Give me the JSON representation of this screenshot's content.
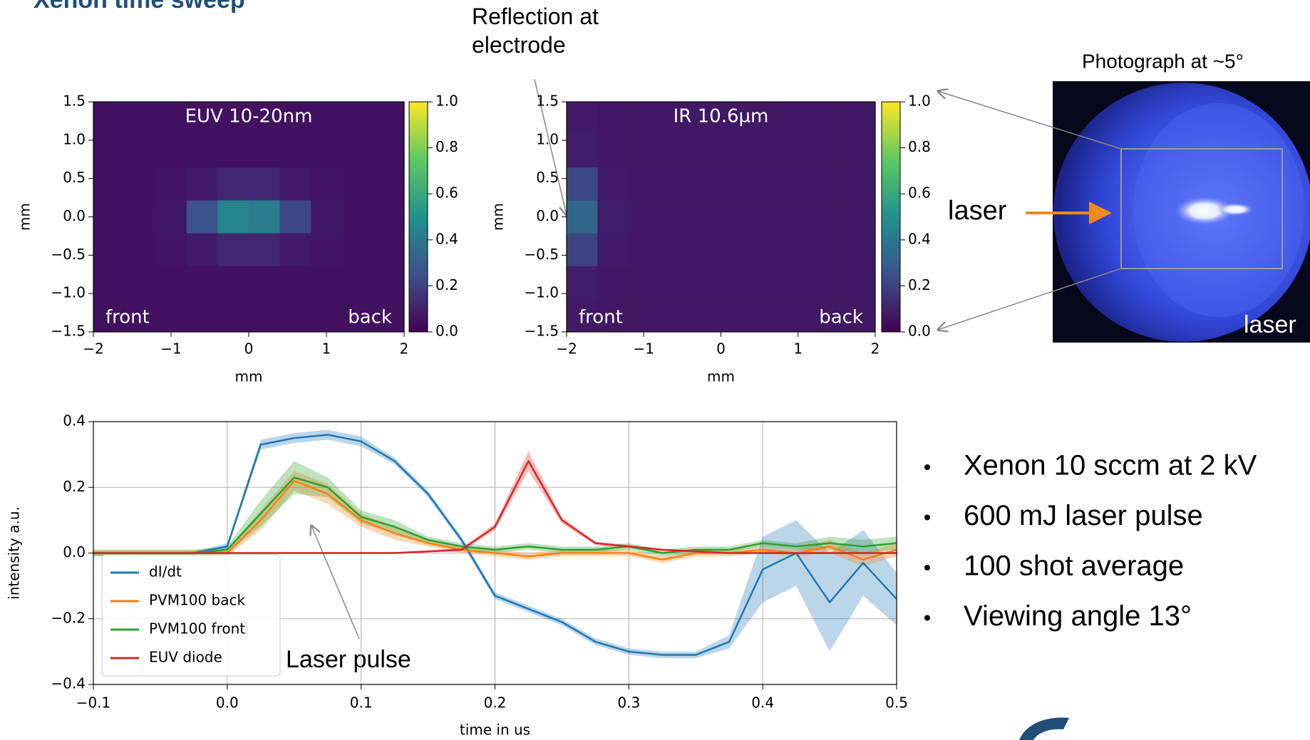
{
  "slide": {
    "title": "Xenon time sweep",
    "bullets": [
      "Xenon 10 sccm at 2 kV",
      "600 mJ laser pulse",
      "100 shot average",
      "Viewing angle 13°"
    ],
    "reflection_note": "Reflection at electrode",
    "photo_caption": "Photograph at ~5°",
    "laser_label": "laser",
    "photo_laser_label": "laser",
    "pulse_note": "Laser pulse"
  },
  "chart_data": [
    {
      "type": "heatmap",
      "title": "EUV 10-20nm",
      "xlabel": "mm",
      "ylabel": "mm",
      "left_label": "front",
      "right_label": "back",
      "xlim": [
        -2,
        2
      ],
      "ylim": [
        -1.5,
        1.5
      ],
      "xticks": [
        {
          "value": -2,
          "label": "−2"
        },
        {
          "value": -1,
          "label": "−1"
        },
        0,
        1,
        2
      ],
      "yticks": [
        1.5,
        {
          "value": 1.0,
          "label": "1.0"
        },
        0.5,
        {
          "value": 0.0,
          "label": "0.0"
        },
        {
          "value": -0.5,
          "label": "−0.5"
        },
        {
          "value": -1.0,
          "label": "−1.0"
        },
        {
          "value": -1.5,
          "label": "−1.5"
        }
      ],
      "clim": [
        0,
        1
      ],
      "cticks": [
        {
          "value": 1.0,
          "label": "1.0"
        },
        0.8,
        0.6,
        0.4,
        0.2,
        {
          "value": 0.0,
          "label": "0.0"
        }
      ],
      "z": [
        [
          0.05,
          0.05,
          0.05,
          0.05,
          0.05,
          0.05,
          0.05,
          0.05,
          0.05,
          0.05
        ],
        [
          0.05,
          0.05,
          0.05,
          0.05,
          0.05,
          0.05,
          0.05,
          0.05,
          0.05,
          0.05
        ],
        [
          0.05,
          0.05,
          0.06,
          0.08,
          0.12,
          0.12,
          0.08,
          0.06,
          0.05,
          0.05
        ],
        [
          0.05,
          0.05,
          0.07,
          0.25,
          0.45,
          0.42,
          0.22,
          0.07,
          0.05,
          0.05
        ],
        [
          0.05,
          0.05,
          0.06,
          0.08,
          0.12,
          0.12,
          0.08,
          0.06,
          0.05,
          0.05
        ],
        [
          0.05,
          0.05,
          0.05,
          0.05,
          0.05,
          0.05,
          0.05,
          0.05,
          0.05,
          0.05
        ],
        [
          0.05,
          0.05,
          0.05,
          0.05,
          0.05,
          0.05,
          0.05,
          0.05,
          0.05,
          0.05
        ]
      ]
    },
    {
      "type": "heatmap",
      "title": "IR 10.6µm",
      "xlabel": "mm",
      "ylabel": "mm",
      "left_label": "front",
      "right_label": "back",
      "xlim": [
        -2,
        2
      ],
      "ylim": [
        -1.5,
        1.5
      ],
      "xticks": [
        {
          "value": -2,
          "label": "−2"
        },
        {
          "value": -1,
          "label": "−1"
        },
        0,
        1,
        2
      ],
      "yticks": [
        1.5,
        {
          "value": 1.0,
          "label": "1.0"
        },
        0.5,
        {
          "value": 0.0,
          "label": "0.0"
        },
        {
          "value": -0.5,
          "label": "−0.5"
        },
        {
          "value": -1.0,
          "label": "−1.0"
        },
        {
          "value": -1.5,
          "label": "−1.5"
        }
      ],
      "clim": [
        0,
        1
      ],
      "cticks": [
        {
          "value": 1.0,
          "label": "1.0"
        },
        0.8,
        0.6,
        0.4,
        0.2,
        {
          "value": 0.0,
          "label": "0.0"
        }
      ],
      "z": [
        [
          0.08,
          0.07,
          0.07,
          0.07,
          0.07,
          0.07,
          0.07,
          0.07,
          0.07,
          0.07
        ],
        [
          0.09,
          0.07,
          0.07,
          0.07,
          0.07,
          0.07,
          0.07,
          0.07,
          0.07,
          0.07
        ],
        [
          0.22,
          0.08,
          0.07,
          0.07,
          0.07,
          0.07,
          0.07,
          0.07,
          0.07,
          0.07
        ],
        [
          0.33,
          0.09,
          0.07,
          0.07,
          0.07,
          0.07,
          0.07,
          0.07,
          0.07,
          0.07
        ],
        [
          0.2,
          0.08,
          0.07,
          0.07,
          0.07,
          0.07,
          0.07,
          0.07,
          0.07,
          0.07
        ],
        [
          0.09,
          0.07,
          0.07,
          0.07,
          0.07,
          0.07,
          0.07,
          0.07,
          0.07,
          0.07
        ],
        [
          0.08,
          0.07,
          0.07,
          0.07,
          0.07,
          0.07,
          0.07,
          0.07,
          0.07,
          0.07
        ]
      ]
    },
    {
      "type": "line",
      "xlabel": "time in us",
      "ylabel": "intensity a.u.",
      "grid": true,
      "legend": "lower left",
      "xlim": [
        -0.1,
        0.5
      ],
      "ylim": [
        -0.4,
        0.4
      ],
      "xticks": [
        {
          "value": -0.1,
          "label": "−0.1"
        },
        {
          "value": 0.0,
          "label": "0.0"
        },
        0.1,
        0.2,
        0.3,
        0.4,
        0.5
      ],
      "yticks": [
        0.4,
        0.2,
        {
          "value": 0.0,
          "label": "0.0"
        },
        {
          "value": -0.2,
          "label": "−0.2"
        },
        {
          "value": -0.4,
          "label": "−0.4"
        }
      ],
      "x": [
        -0.1,
        -0.075,
        -0.05,
        -0.025,
        0,
        0.025,
        0.05,
        0.075,
        0.1,
        0.125,
        0.15,
        0.175,
        0.2,
        0.225,
        0.25,
        0.275,
        0.3,
        0.325,
        0.35,
        0.375,
        0.4,
        0.425,
        0.45,
        0.475,
        0.5
      ],
      "series": [
        {
          "name": "dI/dt",
          "color": "#1f77b4",
          "values": [
            0,
            0,
            0,
            0,
            0.02,
            0.33,
            0.35,
            0.36,
            0.34,
            0.28,
            0.18,
            0.04,
            -0.13,
            -0.17,
            -0.21,
            -0.27,
            -0.3,
            -0.31,
            -0.31,
            -0.27,
            -0.05,
            0.0,
            -0.15,
            -0.03,
            -0.14
          ],
          "errors": [
            0.005,
            0.005,
            0.005,
            0.005,
            0.01,
            0.015,
            0.015,
            0.015,
            0.015,
            0.01,
            0.01,
            0.01,
            0.01,
            0.01,
            0.01,
            0.01,
            0.01,
            0.01,
            0.01,
            0.02,
            0.1,
            0.1,
            0.15,
            0.1,
            0.08
          ]
        },
        {
          "name": "PVM100 back",
          "color": "#ff7f0e",
          "values": [
            0,
            0,
            0,
            0,
            0,
            0.1,
            0.22,
            0.18,
            0.1,
            0.06,
            0.03,
            0.01,
            0.0,
            -0.01,
            0.0,
            0.0,
            0.0,
            -0.02,
            0.0,
            0.0,
            0.01,
            0.0,
            0.02,
            -0.02,
            0.01
          ],
          "errors": [
            0.01,
            0.01,
            0.01,
            0.01,
            0.01,
            0.03,
            0.03,
            0.03,
            0.02,
            0.02,
            0.01,
            0.01,
            0.01,
            0.01,
            0.01,
            0.01,
            0.01,
            0.01,
            0.01,
            0.01,
            0.01,
            0.01,
            0.02,
            0.02,
            0.02
          ]
        },
        {
          "name": "PVM100 front",
          "color": "#2ca02c",
          "values": [
            0,
            0,
            0,
            0,
            0.01,
            0.12,
            0.23,
            0.2,
            0.11,
            0.08,
            0.04,
            0.02,
            0.01,
            0.02,
            0.01,
            0.01,
            0.02,
            0.0,
            0.01,
            0.01,
            0.03,
            0.02,
            0.03,
            0.02,
            0.03
          ],
          "errors": [
            0.01,
            0.01,
            0.01,
            0.01,
            0.01,
            0.04,
            0.05,
            0.03,
            0.02,
            0.02,
            0.01,
            0.01,
            0.01,
            0.01,
            0.01,
            0.01,
            0.01,
            0.01,
            0.01,
            0.01,
            0.01,
            0.01,
            0.02,
            0.02,
            0.02
          ]
        },
        {
          "name": "EUV diode",
          "color": "#d62728",
          "values": [
            0,
            0,
            0,
            0,
            0,
            0,
            0,
            0,
            0,
            0.0,
            0.005,
            0.01,
            0.08,
            0.28,
            0.1,
            0.03,
            0.02,
            0.01,
            0.005,
            0,
            0,
            0,
            0,
            0,
            0
          ],
          "errors": [
            0.003,
            0.003,
            0.003,
            0.003,
            0.003,
            0.003,
            0.003,
            0.003,
            0.003,
            0.003,
            0.003,
            0.005,
            0.01,
            0.03,
            0.01,
            0.005,
            0.005,
            0.003,
            0.003,
            0.003,
            0.003,
            0.003,
            0.003,
            0.003,
            0.003
          ]
        }
      ]
    }
  ]
}
